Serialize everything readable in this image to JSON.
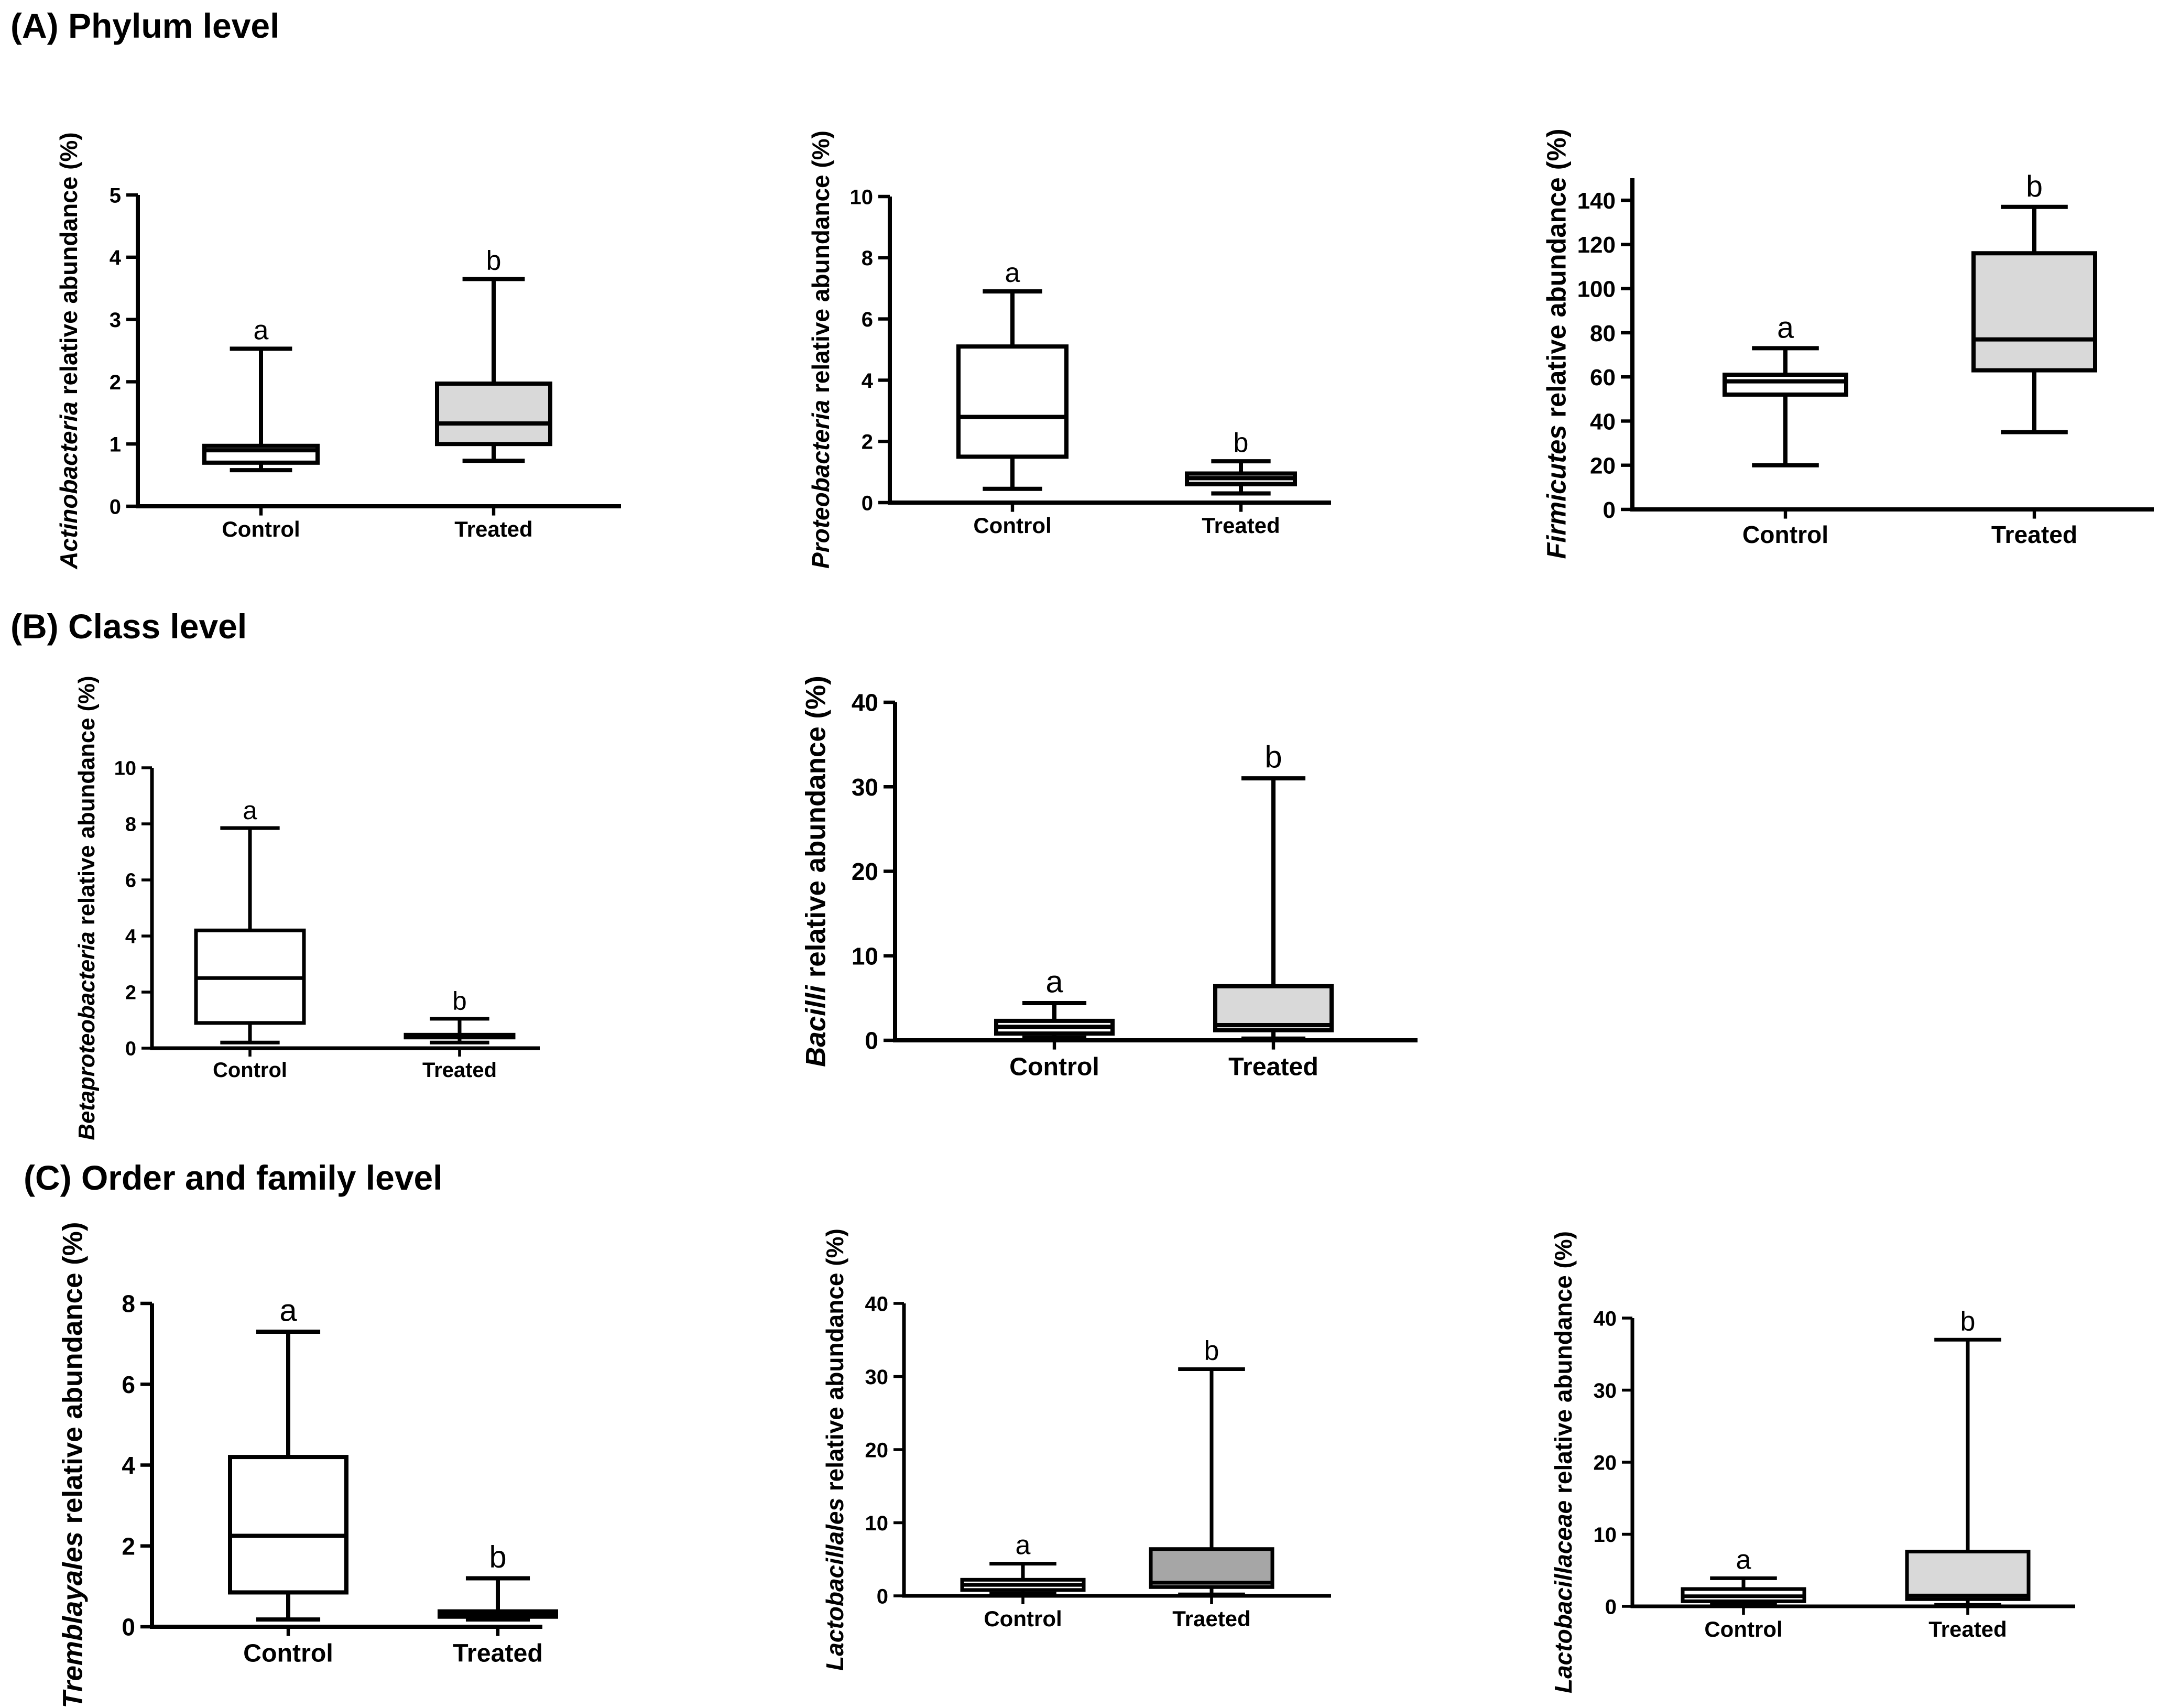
{
  "sections": [
    {
      "id": "A",
      "title": "(A) Phylum level"
    },
    {
      "id": "B",
      "title": "(B) Class level"
    },
    {
      "id": "C",
      "title": "(C) Order and family level"
    }
  ],
  "colors": {
    "white": "#ffffff",
    "lightgray": "#d9d9d9",
    "darkgray": "#a6a6a6",
    "stroke": "#000000"
  },
  "chart_data": [
    {
      "type": "box",
      "section": "A",
      "ylabel_italic": "Actinobacteria",
      "ylabel_rest": "  relative abundance (%)",
      "ylim": [
        0,
        5
      ],
      "yticks": [
        0,
        1,
        2,
        3,
        4,
        5
      ],
      "categories": [
        "Control",
        "Treated"
      ],
      "boxes": [
        {
          "min": 0.58,
          "q1": 0.7,
          "median": 0.9,
          "q3": 0.97,
          "max": 2.53,
          "letter": "a",
          "fill": "white"
        },
        {
          "min": 0.73,
          "q1": 1.0,
          "median": 1.33,
          "q3": 1.97,
          "max": 3.65,
          "letter": "b",
          "fill": "lightgray"
        }
      ]
    },
    {
      "type": "box",
      "section": "A",
      "ylabel_italic": "Proteobacteria",
      "ylabel_rest": "  relative abundance  (%)",
      "ylim": [
        0,
        10
      ],
      "yticks": [
        0,
        2,
        4,
        6,
        8,
        10
      ],
      "categories": [
        "Control",
        "Treated"
      ],
      "boxes": [
        {
          "min": 0.45,
          "q1": 1.5,
          "median": 2.8,
          "q3": 5.1,
          "max": 6.9,
          "letter": "a",
          "fill": "white"
        },
        {
          "min": 0.3,
          "q1": 0.6,
          "median": 0.8,
          "q3": 0.95,
          "max": 1.35,
          "letter": "b",
          "fill": "lightgray"
        }
      ]
    },
    {
      "type": "box",
      "section": "A",
      "ylabel_italic": "Firmicutes",
      "ylabel_rest": "  relative abundance (%)",
      "ylim": [
        0,
        150
      ],
      "yticks": [
        0,
        20,
        40,
        60,
        80,
        100,
        120,
        140
      ],
      "categories": [
        "Control",
        "Treated"
      ],
      "boxes": [
        {
          "min": 20,
          "q1": 52,
          "median": 58,
          "q3": 61,
          "max": 73,
          "letter": "a",
          "fill": "white"
        },
        {
          "min": 35,
          "q1": 63,
          "median": 77,
          "q3": 116,
          "max": 137,
          "letter": "b",
          "fill": "lightgray"
        }
      ]
    },
    {
      "type": "box",
      "section": "B",
      "ylabel_italic": "Betaproteobacteria",
      "ylabel_rest": "  relative abundance (%)",
      "ylim": [
        0,
        10
      ],
      "yticks": [
        0,
        2,
        4,
        6,
        8,
        10
      ],
      "categories": [
        "Control",
        "Treated"
      ],
      "boxes": [
        {
          "min": 0.2,
          "q1": 0.9,
          "median": 2.5,
          "q3": 4.2,
          "max": 7.85,
          "letter": "a",
          "fill": "white"
        },
        {
          "min": 0.2,
          "q1": 0.38,
          "median": 0.42,
          "q3": 0.48,
          "max": 1.05,
          "letter": "b",
          "fill": "white"
        }
      ]
    },
    {
      "type": "box",
      "section": "B",
      "ylabel_italic": "Bacilli",
      "ylabel_rest": " relative abundance (%)",
      "ylim": [
        0,
        40
      ],
      "yticks": [
        0,
        10,
        20,
        30,
        40
      ],
      "categories": [
        "Control",
        "Treated"
      ],
      "boxes": [
        {
          "min": 0.3,
          "q1": 0.8,
          "median": 1.6,
          "q3": 2.3,
          "max": 4.4,
          "letter": "a",
          "fill": "white"
        },
        {
          "min": 0.2,
          "q1": 1.2,
          "median": 1.8,
          "q3": 6.4,
          "max": 31,
          "letter": "b",
          "fill": "lightgray"
        }
      ]
    },
    {
      "type": "box",
      "section": "C",
      "ylabel_italic": "Tremblayales",
      "ylabel_rest": " relative abundance (%)",
      "ylim": [
        0,
        8
      ],
      "yticks": [
        0,
        2,
        4,
        6,
        8
      ],
      "categories": [
        "Control",
        "Treated"
      ],
      "boxes": [
        {
          "min": 0.18,
          "q1": 0.85,
          "median": 2.25,
          "q3": 4.2,
          "max": 7.3,
          "letter": "a",
          "fill": "white"
        },
        {
          "min": 0.18,
          "q1": 0.25,
          "median": 0.3,
          "q3": 0.38,
          "max": 1.2,
          "letter": "b",
          "fill": "white"
        }
      ]
    },
    {
      "type": "box",
      "section": "C",
      "ylabel_italic": "Lactobacillales",
      "ylabel_rest": " relative abundance (%)",
      "ylim": [
        0,
        40
      ],
      "yticks": [
        0,
        10,
        20,
        30,
        40
      ],
      "categories": [
        "Control",
        "Traeted"
      ],
      "boxes": [
        {
          "min": 0.3,
          "q1": 0.8,
          "median": 1.5,
          "q3": 2.2,
          "max": 4.4,
          "letter": "a",
          "fill": "white"
        },
        {
          "min": 0.2,
          "q1": 1.2,
          "median": 1.8,
          "q3": 6.4,
          "max": 31,
          "letter": "b",
          "fill": "darkgray"
        }
      ]
    },
    {
      "type": "box",
      "section": "C",
      "ylabel_italic": "Lactobacillaceae",
      "ylabel_rest": "  relative abundance (%)",
      "ylim": [
        0,
        40
      ],
      "yticks": [
        0,
        10,
        20,
        30,
        40
      ],
      "categories": [
        "Control",
        "Treated"
      ],
      "boxes": [
        {
          "min": 0.3,
          "q1": 0.7,
          "median": 1.4,
          "q3": 2.4,
          "max": 3.9,
          "letter": "a",
          "fill": "white"
        },
        {
          "min": 0.2,
          "q1": 1.0,
          "median": 1.5,
          "q3": 7.6,
          "max": 37,
          "letter": "b",
          "fill": "lightgray"
        }
      ]
    }
  ]
}
